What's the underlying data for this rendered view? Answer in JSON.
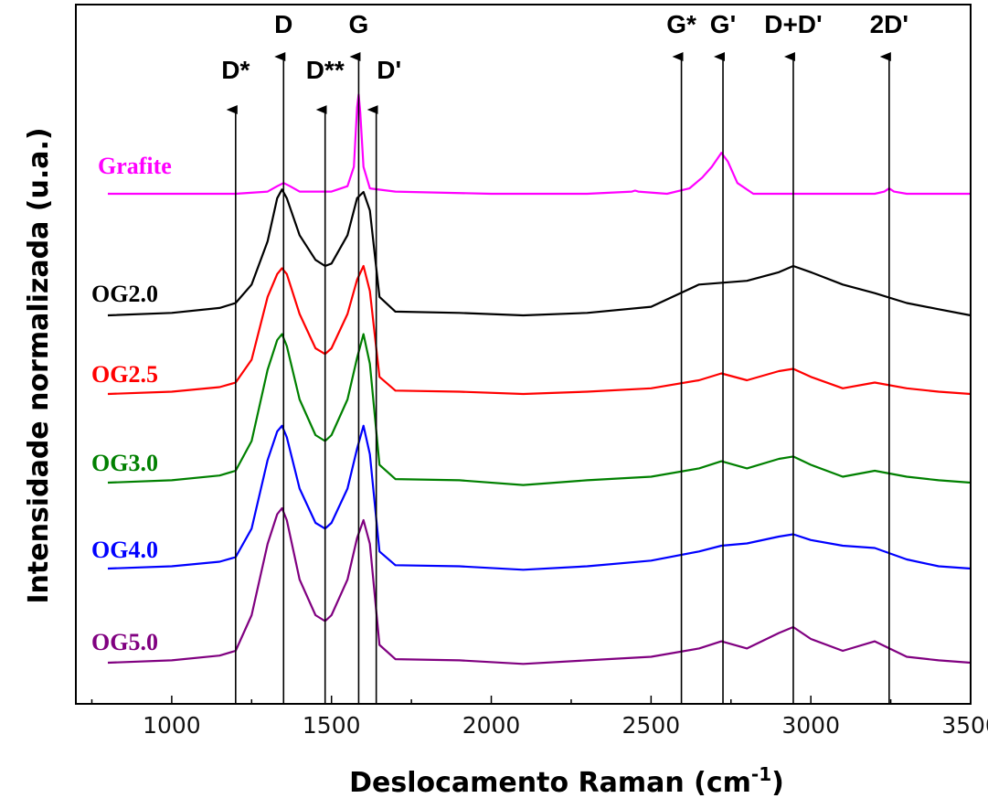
{
  "chart_data": {
    "type": "line",
    "xlabel_main": "Deslocamento Raman (cm",
    "xlabel_sup": "-1",
    "xlabel_close": ")",
    "ylabel": "Intensidade normalizada (u.a.)",
    "xlim": [
      700,
      3500
    ],
    "xticks": [
      1000,
      1500,
      2000,
      2500,
      3000,
      3500
    ],
    "xtick_labels": [
      "1000",
      "1500",
      "2000",
      "2500",
      "3000",
      "3500"
    ],
    "grid": false,
    "peaks": [
      {
        "label": "D*",
        "x": 1200
      },
      {
        "label": "D",
        "x": 1350
      },
      {
        "label": "D**",
        "x": 1480
      },
      {
        "label": "G",
        "x": 1585
      },
      {
        "label": "D'",
        "x": 1640
      },
      {
        "label": "G*",
        "x": 2595
      },
      {
        "label": "G'",
        "x": 2725
      },
      {
        "label": "D+D'",
        "x": 2945
      },
      {
        "label": "2D'",
        "x": 3245
      }
    ],
    "series": [
      {
        "name": "Grafite",
        "color": "#ff00ff",
        "offset": 0.0,
        "x": [
          800,
          1200,
          1300,
          1330,
          1350,
          1370,
          1400,
          1500,
          1550,
          1570,
          1580,
          1585,
          1590,
          1600,
          1620,
          1700,
          2000,
          2300,
          2440,
          2450,
          2460,
          2550,
          2620,
          2660,
          2690,
          2720,
          2740,
          2770,
          2820,
          3200,
          3230,
          3245,
          3260,
          3300,
          3500
        ],
        "values": [
          0,
          0,
          0.02,
          0.07,
          0.1,
          0.07,
          0.02,
          0.02,
          0.07,
          0.25,
          0.8,
          0.92,
          0.75,
          0.25,
          0.05,
          0.02,
          0,
          0,
          0.02,
          0.03,
          0.02,
          0,
          0.05,
          0.15,
          0.25,
          0.38,
          0.3,
          0.1,
          0,
          0,
          0.02,
          0.05,
          0.02,
          0,
          0
        ]
      },
      {
        "name": "OG2.0",
        "color": "#000000",
        "offset": 1.0,
        "x": [
          800,
          1000,
          1150,
          1200,
          1250,
          1300,
          1330,
          1345,
          1360,
          1400,
          1450,
          1480,
          1500,
          1550,
          1580,
          1600,
          1620,
          1650,
          1700,
          1900,
          2100,
          2300,
          2500,
          2650,
          2800,
          2900,
          2945,
          3000,
          3100,
          3200,
          3300,
          3400,
          3500
        ],
        "values": [
          0,
          0.02,
          0.06,
          0.1,
          0.25,
          0.6,
          0.95,
          1.02,
          0.95,
          0.65,
          0.45,
          0.4,
          0.42,
          0.65,
          0.95,
          1.0,
          0.85,
          0.15,
          0.03,
          0.02,
          0,
          0.02,
          0.07,
          0.25,
          0.28,
          0.35,
          0.4,
          0.35,
          0.25,
          0.18,
          0.1,
          0.05,
          0
        ]
      },
      {
        "name": "OG2.5",
        "color": "#ff0000",
        "offset": 2.0,
        "x": [
          800,
          1000,
          1150,
          1200,
          1250,
          1300,
          1330,
          1345,
          1360,
          1400,
          1450,
          1480,
          1500,
          1550,
          1580,
          1600,
          1620,
          1650,
          1700,
          1900,
          2100,
          2300,
          2500,
          2650,
          2720,
          2800,
          2900,
          2945,
          3000,
          3100,
          3200,
          3300,
          3400,
          3500
        ],
        "values": [
          0,
          0.02,
          0.06,
          0.1,
          0.3,
          0.85,
          1.05,
          1.1,
          1.05,
          0.7,
          0.4,
          0.35,
          0.4,
          0.7,
          1.0,
          1.12,
          0.9,
          0.15,
          0.03,
          0.02,
          0,
          0.02,
          0.05,
          0.12,
          0.18,
          0.12,
          0.2,
          0.22,
          0.15,
          0.05,
          0.1,
          0.05,
          0.02,
          0
        ]
      },
      {
        "name": "OG3.0",
        "color": "#008000",
        "offset": 3.0,
        "x": [
          800,
          1000,
          1150,
          1200,
          1250,
          1300,
          1330,
          1345,
          1360,
          1400,
          1450,
          1480,
          1500,
          1550,
          1580,
          1600,
          1620,
          1650,
          1700,
          1900,
          2100,
          2300,
          2500,
          2650,
          2720,
          2800,
          2900,
          2945,
          3000,
          3100,
          3200,
          3300,
          3400,
          3500
        ],
        "values": [
          0,
          0.02,
          0.06,
          0.1,
          0.35,
          0.95,
          1.2,
          1.25,
          1.15,
          0.7,
          0.4,
          0.35,
          0.4,
          0.7,
          1.05,
          1.25,
          1.0,
          0.15,
          0.03,
          0.02,
          -0.02,
          0.02,
          0.05,
          0.12,
          0.18,
          0.12,
          0.2,
          0.22,
          0.15,
          0.05,
          0.1,
          0.05,
          0.02,
          0
        ]
      },
      {
        "name": "OG4.0",
        "color": "#0000ff",
        "offset": 4.0,
        "x": [
          800,
          1000,
          1150,
          1200,
          1250,
          1300,
          1330,
          1345,
          1360,
          1400,
          1450,
          1480,
          1500,
          1550,
          1580,
          1600,
          1620,
          1650,
          1700,
          1900,
          2100,
          2300,
          2500,
          2650,
          2720,
          2800,
          2900,
          2945,
          3000,
          3100,
          3200,
          3300,
          3400,
          3500
        ],
        "values": [
          0,
          0.02,
          0.06,
          0.1,
          0.35,
          0.95,
          1.2,
          1.25,
          1.15,
          0.7,
          0.4,
          0.35,
          0.4,
          0.7,
          1.05,
          1.25,
          1.0,
          0.15,
          0.03,
          0.02,
          -0.01,
          0.02,
          0.07,
          0.15,
          0.2,
          0.22,
          0.28,
          0.3,
          0.25,
          0.2,
          0.18,
          0.08,
          0.02,
          0
        ]
      },
      {
        "name": "OG5.0",
        "color": "#800080",
        "offset": 5.0,
        "x": [
          800,
          1000,
          1150,
          1200,
          1250,
          1300,
          1330,
          1345,
          1360,
          1400,
          1450,
          1480,
          1500,
          1550,
          1580,
          1600,
          1620,
          1650,
          1700,
          1900,
          2100,
          2300,
          2500,
          2650,
          2720,
          2800,
          2900,
          2945,
          3000,
          3100,
          3200,
          3300,
          3400,
          3500
        ],
        "values": [
          0,
          0.02,
          0.06,
          0.1,
          0.4,
          1.0,
          1.25,
          1.3,
          1.2,
          0.7,
          0.4,
          0.35,
          0.4,
          0.7,
          1.05,
          1.2,
          1.0,
          0.15,
          0.03,
          0.02,
          -0.01,
          0.02,
          0.05,
          0.12,
          0.18,
          0.12,
          0.25,
          0.3,
          0.2,
          0.1,
          0.18,
          0.05,
          0.02,
          0
        ]
      }
    ]
  }
}
